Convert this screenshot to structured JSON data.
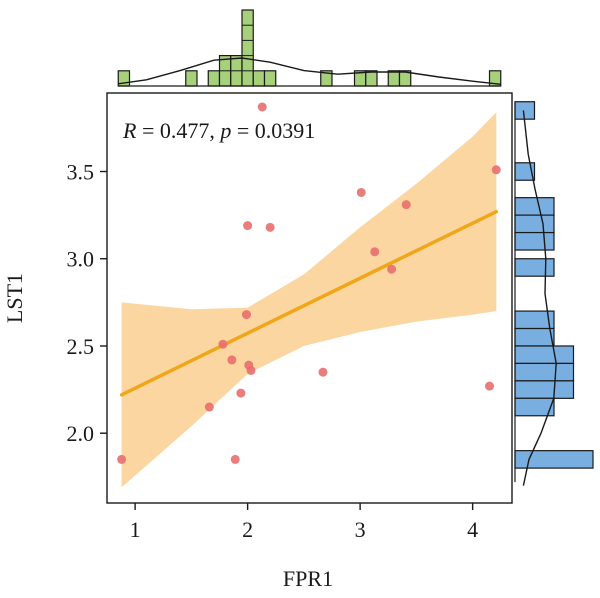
{
  "chart_data": {
    "type": "scatter",
    "xlabel": "FPR1",
    "ylabel": "LST1",
    "xlim": [
      0.75,
      4.35
    ],
    "ylim": [
      1.6,
      3.95
    ],
    "xticks": [
      1,
      2,
      3,
      4
    ],
    "yticks": [
      2.0,
      2.5,
      3.0,
      3.5
    ],
    "xtick_labels": [
      "1",
      "2",
      "3",
      "4"
    ],
    "ytick_labels": [
      "2.0",
      "2.5",
      "3.0",
      "3.5"
    ],
    "annotation": {
      "r_symbol": "R",
      "r_text": " = 0.477, ",
      "p_symbol": "p",
      "p_text": " = 0.0391"
    },
    "points": [
      {
        "x": 0.88,
        "y": 1.85
      },
      {
        "x": 1.66,
        "y": 2.15
      },
      {
        "x": 1.78,
        "y": 2.51
      },
      {
        "x": 1.86,
        "y": 2.42
      },
      {
        "x": 1.89,
        "y": 1.85
      },
      {
        "x": 1.94,
        "y": 2.23
      },
      {
        "x": 1.99,
        "y": 2.68
      },
      {
        "x": 2.0,
        "y": 3.19
      },
      {
        "x": 2.01,
        "y": 2.39
      },
      {
        "x": 2.03,
        "y": 2.36
      },
      {
        "x": 2.13,
        "y": 3.87
      },
      {
        "x": 2.2,
        "y": 3.18
      },
      {
        "x": 2.67,
        "y": 2.35
      },
      {
        "x": 3.01,
        "y": 3.38
      },
      {
        "x": 3.13,
        "y": 3.04
      },
      {
        "x": 3.28,
        "y": 2.94
      },
      {
        "x": 3.41,
        "y": 3.31
      },
      {
        "x": 4.15,
        "y": 2.27
      },
      {
        "x": 4.21,
        "y": 3.51
      }
    ],
    "regression": {
      "x_start": 0.88,
      "y_start": 2.22,
      "x_end": 4.21,
      "y_end": 3.27
    },
    "confidence_band": {
      "x": [
        0.88,
        1.5,
        2.0,
        2.5,
        3.0,
        3.5,
        4.0,
        4.21
      ],
      "upper": [
        2.75,
        2.71,
        2.72,
        2.91,
        3.18,
        3.43,
        3.7,
        3.84
      ],
      "lower": [
        1.69,
        2.04,
        2.34,
        2.5,
        2.58,
        2.64,
        2.68,
        2.7
      ]
    },
    "top_histogram": {
      "bin_width": 0.1,
      "bins": [
        {
          "x0": 0.85,
          "count": 1
        },
        {
          "x0": 1.45,
          "count": 1
        },
        {
          "x0": 1.65,
          "count": 1
        },
        {
          "x0": 1.75,
          "count": 2
        },
        {
          "x0": 1.85,
          "count": 2
        },
        {
          "x0": 1.95,
          "count": 5
        },
        {
          "x0": 2.05,
          "count": 1
        },
        {
          "x0": 2.15,
          "count": 1
        },
        {
          "x0": 2.65,
          "count": 1
        },
        {
          "x0": 2.95,
          "count": 1
        },
        {
          "x0": 3.05,
          "count": 1
        },
        {
          "x0": 3.25,
          "count": 1
        },
        {
          "x0": 3.35,
          "count": 1
        },
        {
          "x0": 4.15,
          "count": 1
        }
      ],
      "density_curve": [
        [
          0.85,
          0.08
        ],
        [
          1.1,
          0.22
        ],
        [
          1.4,
          0.55
        ],
        [
          1.7,
          0.92
        ],
        [
          1.95,
          1.0
        ],
        [
          2.2,
          0.85
        ],
        [
          2.5,
          0.55
        ],
        [
          2.8,
          0.42
        ],
        [
          3.1,
          0.5
        ],
        [
          3.4,
          0.5
        ],
        [
          3.7,
          0.32
        ],
        [
          4.0,
          0.17
        ],
        [
          4.25,
          0.06
        ]
      ],
      "color": "#a6d07a",
      "max_count": 5
    },
    "right_histogram": {
      "bin_height": 0.1,
      "bins": [
        {
          "y0": 3.8,
          "count": 1
        },
        {
          "y0": 3.45,
          "count": 1
        },
        {
          "y0": 3.25,
          "count": 2
        },
        {
          "y0": 3.15,
          "count": 2
        },
        {
          "y0": 3.05,
          "count": 2
        },
        {
          "y0": 2.9,
          "count": 2
        },
        {
          "y0": 2.6,
          "count": 2
        },
        {
          "y0": 2.5,
          "count": 2
        },
        {
          "y0": 2.4,
          "count": 3
        },
        {
          "y0": 2.3,
          "count": 3
        },
        {
          "y0": 2.2,
          "count": 3
        },
        {
          "y0": 2.1,
          "count": 2
        },
        {
          "y0": 1.8,
          "count": 4
        }
      ],
      "density_curve": [
        [
          1.7,
          0.06
        ],
        [
          1.85,
          0.2
        ],
        [
          2.0,
          0.5
        ],
        [
          2.2,
          0.82
        ],
        [
          2.4,
          0.88
        ],
        [
          2.6,
          0.72
        ],
        [
          2.8,
          0.6
        ],
        [
          3.0,
          0.62
        ],
        [
          3.2,
          0.55
        ],
        [
          3.4,
          0.35
        ],
        [
          3.6,
          0.18
        ],
        [
          3.85,
          0.06
        ]
      ],
      "color": "#79aee0",
      "max_count": 4
    },
    "colors": {
      "points": "#e86e6e",
      "regression_line": "#f0a619",
      "confidence_band": "#fccf90",
      "axis": "#1a1a1a"
    }
  }
}
